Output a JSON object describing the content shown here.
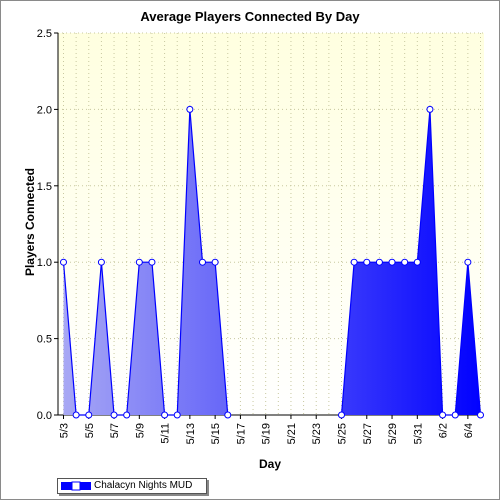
{
  "chart_data": {
    "type": "area",
    "title": "Average Players Connected By Day",
    "xlabel": "Day",
    "ylabel": "Players Connected",
    "ylim": [
      0,
      2.5
    ],
    "yticks": [
      "0.0",
      "0.5",
      "1.0",
      "1.5",
      "2.0",
      "2.5"
    ],
    "grid": true,
    "legend_placement": "bottom-left",
    "categories": [
      "5/3",
      "5/4",
      "5/5",
      "5/6",
      "5/7",
      "5/8",
      "5/9",
      "5/10",
      "5/11",
      "5/12",
      "5/13",
      "5/14",
      "5/15",
      "5/16",
      "5/17",
      "5/18",
      "5/19",
      "5/20",
      "5/21",
      "5/22",
      "5/23",
      "5/24",
      "5/25",
      "5/26",
      "5/27",
      "5/28",
      "5/29",
      "5/30",
      "5/31",
      "6/1",
      "6/2",
      "6/3",
      "6/4",
      "6/5"
    ],
    "tick_labels": [
      "5/3",
      "5/5",
      "5/7",
      "5/9",
      "5/11",
      "5/13",
      "5/15",
      "5/17",
      "5/19",
      "5/21",
      "5/23",
      "5/25",
      "5/27",
      "5/29",
      "5/31",
      "6/2",
      "6/4"
    ],
    "series": [
      {
        "name": "Chalacyn Nights MUD",
        "values": [
          1,
          0,
          0,
          1,
          0,
          0,
          1,
          1,
          0,
          0,
          2,
          1,
          1,
          0,
          null,
          null,
          null,
          null,
          null,
          null,
          null,
          null,
          0,
          1,
          1,
          1,
          1,
          1,
          1,
          2,
          0,
          0,
          1,
          0
        ]
      }
    ],
    "colors": {
      "plot_bg_top": "#ffffe0",
      "plot_bg_bottom": "#ffffff",
      "grid": "#c8c8a0",
      "line": "#0000ff",
      "marker_fill": "#ffffff",
      "fill_left": "#aaaaf4",
      "fill_right": "#0000ff"
    }
  }
}
